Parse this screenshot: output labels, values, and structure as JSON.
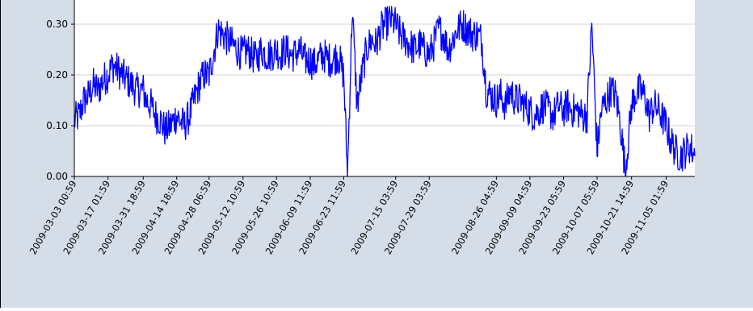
{
  "colors": {
    "page_background": "#d5dee8",
    "plot_background": "#ffffff",
    "series": "#0000ff",
    "grid": "#d3d3d3",
    "axis": "#000000",
    "text": "#000000",
    "frame": "#000000"
  },
  "chart_data": {
    "type": "line",
    "title": "",
    "xlabel": "",
    "ylabel": "",
    "ylim": [
      0.0,
      0.335
    ],
    "yticks": [
      0.0,
      0.1,
      0.2,
      0.3
    ],
    "ytick_labels": [
      "0.00",
      "0.10",
      "0.20",
      "0.30"
    ],
    "grid": "horizontal",
    "legend": "none",
    "xlim": [
      "2009-03-03 00:59",
      "2009-11-17 00:59"
    ],
    "xtick_labels": [
      "2009-03-03 00:59",
      "2009-03-17 01:59",
      "2009-03-31 18:59",
      "2009-04-14 18:59",
      "2009-04-28 06:59",
      "2009-05-12 10:59",
      "2009-05-26 10:59",
      "2009-06-09 11:59",
      "2009-06-23 11:59",
      "2009-07-15 03:59",
      "2009-07-29 03:59",
      "2009-08-26 04:59",
      "2009-09-09 04:59",
      "2009-09-23 05:59",
      "2009-10-07 05:59",
      "2009-10-21 14:59",
      "2009-11-05 01:59"
    ],
    "series": [
      {
        "x": [
          "2009-03-03 00:59",
          "2009-03-05 00:59",
          "2009-03-07 00:59",
          "2009-03-09 00:59",
          "2009-03-11 00:59",
          "2009-03-13 00:59",
          "2009-03-15 00:59",
          "2009-03-17 01:59",
          "2009-03-19 00:59",
          "2009-03-21 00:59",
          "2009-03-23 00:59",
          "2009-03-25 00:59",
          "2009-03-27 00:59",
          "2009-03-29 00:59",
          "2009-03-31 18:59",
          "2009-04-02 00:59",
          "2009-04-04 00:59",
          "2009-04-06 00:59",
          "2009-04-08 00:59",
          "2009-04-10 00:59",
          "2009-04-12 00:59",
          "2009-04-14 18:59",
          "2009-04-16 00:59",
          "2009-04-18 00:59",
          "2009-04-20 00:59",
          "2009-04-22 00:59",
          "2009-04-24 00:59",
          "2009-04-26 00:59",
          "2009-04-28 06:59",
          "2009-04-30 00:59",
          "2009-05-02 00:59",
          "2009-05-04 00:59",
          "2009-05-06 00:59",
          "2009-05-08 00:59",
          "2009-05-10 00:59",
          "2009-05-12 10:59",
          "2009-05-14 00:59",
          "2009-05-16 00:59",
          "2009-05-18 00:59",
          "2009-05-20 00:59",
          "2009-05-22 00:59",
          "2009-05-24 00:59",
          "2009-05-26 10:59",
          "2009-05-28 00:59",
          "2009-05-30 00:59",
          "2009-06-01 00:59",
          "2009-06-03 00:59",
          "2009-06-05 00:59",
          "2009-06-07 00:59",
          "2009-06-09 11:59",
          "2009-06-11 00:59",
          "2009-06-13 00:59",
          "2009-06-15 00:59",
          "2009-06-17 00:59",
          "2009-06-19 00:59",
          "2009-06-21 00:59",
          "2009-06-23 11:59",
          "2009-06-25 00:59",
          "2009-06-27 00:59",
          "2009-06-29 00:59",
          "2009-07-01 00:59",
          "2009-07-03 00:59",
          "2009-07-05 00:59",
          "2009-07-07 00:59",
          "2009-07-09 00:59",
          "2009-07-11 00:59",
          "2009-07-13 00:59",
          "2009-07-15 03:59",
          "2009-07-17 00:59",
          "2009-07-19 00:59",
          "2009-07-21 00:59",
          "2009-07-23 00:59",
          "2009-07-25 00:59",
          "2009-07-27 00:59",
          "2009-07-29 03:59",
          "2009-07-31 00:59",
          "2009-08-02 00:59",
          "2009-08-04 00:59",
          "2009-08-06 00:59",
          "2009-08-08 00:59",
          "2009-08-10 00:59",
          "2009-08-12 00:59",
          "2009-08-14 00:59",
          "2009-08-16 00:59",
          "2009-08-18 00:59",
          "2009-08-20 00:59",
          "2009-08-22 00:59",
          "2009-08-24 00:59",
          "2009-08-26 04:59",
          "2009-08-28 00:59",
          "2009-08-30 00:59",
          "2009-09-01 00:59",
          "2009-09-03 00:59",
          "2009-09-05 00:59",
          "2009-09-07 00:59",
          "2009-09-09 04:59",
          "2009-09-11 00:59",
          "2009-09-13 00:59",
          "2009-09-15 00:59",
          "2009-09-17 00:59",
          "2009-09-19 00:59",
          "2009-09-21 00:59",
          "2009-09-23 05:59",
          "2009-09-25 00:59",
          "2009-09-27 00:59",
          "2009-09-29 00:59",
          "2009-10-01 00:59",
          "2009-10-03 00:59",
          "2009-10-05 00:59",
          "2009-10-07 05:59",
          "2009-10-09 00:59",
          "2009-10-11 00:59",
          "2009-10-13 00:59",
          "2009-10-15 00:59",
          "2009-10-17 00:59",
          "2009-10-19 00:59",
          "2009-10-21 14:59",
          "2009-10-23 00:59",
          "2009-10-25 00:59",
          "2009-10-27 00:59",
          "2009-10-29 00:59",
          "2009-10-31 00:59",
          "2009-11-02 00:59",
          "2009-11-05 01:59",
          "2009-11-07 00:59",
          "2009-11-09 00:59",
          "2009-11-11 00:59",
          "2009-11-13 00:59",
          "2009-11-15 00:59",
          "2009-11-17 00:59"
        ],
        "y": [
          0.11,
          0.12,
          0.15,
          0.16,
          0.18,
          0.17,
          0.19,
          0.2,
          0.22,
          0.21,
          0.2,
          0.19,
          0.18,
          0.17,
          0.17,
          0.15,
          0.14,
          0.12,
          0.11,
          0.09,
          0.1,
          0.12,
          0.11,
          0.1,
          0.12,
          0.15,
          0.18,
          0.2,
          0.2,
          0.24,
          0.29,
          0.28,
          0.27,
          0.26,
          0.25,
          0.24,
          0.25,
          0.24,
          0.23,
          0.25,
          0.24,
          0.24,
          0.25,
          0.24,
          0.25,
          0.24,
          0.24,
          0.25,
          0.23,
          0.23,
          0.22,
          0.23,
          0.24,
          0.23,
          0.23,
          0.24,
          0.2,
          0.0,
          0.33,
          0.14,
          0.2,
          0.25,
          0.27,
          0.26,
          0.29,
          0.3,
          0.31,
          0.3,
          0.28,
          0.27,
          0.26,
          0.25,
          0.26,
          0.25,
          0.24,
          0.26,
          0.29,
          0.28,
          0.25,
          0.27,
          0.29,
          0.3,
          0.29,
          0.28,
          0.28,
          0.27,
          0.17,
          0.16,
          0.15,
          0.16,
          0.14,
          0.17,
          0.15,
          0.15,
          0.14,
          0.13,
          0.12,
          0.13,
          0.14,
          0.13,
          0.12,
          0.14,
          0.13,
          0.14,
          0.13,
          0.13,
          0.12,
          0.12,
          0.3,
          0.05,
          0.13,
          0.15,
          0.17,
          0.16,
          0.1,
          0.01,
          0.14,
          0.16,
          0.17,
          0.16,
          0.12,
          0.14,
          0.13,
          0.1,
          0.07,
          0.05,
          0.04,
          0.05,
          0.06,
          0.04
        ]
      }
    ]
  }
}
